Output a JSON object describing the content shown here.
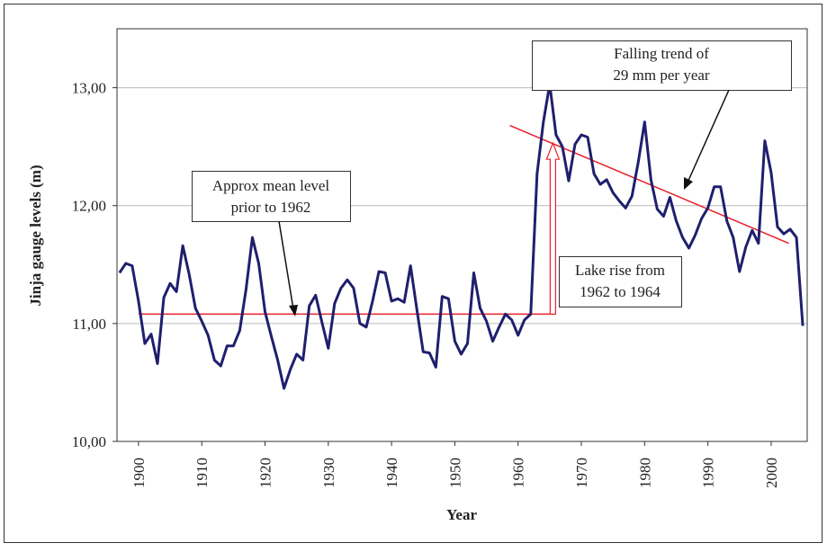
{
  "chart_data": {
    "type": "line",
    "y_label": "Jinja gauge levels (m)",
    "x_label": "Year",
    "color": "#1f1f6e",
    "x": [
      1897,
      1898,
      1899,
      1900,
      1901,
      1902,
      1903,
      1904,
      1905,
      1906,
      1907,
      1908,
      1909,
      1910,
      1911,
      1912,
      1913,
      1914,
      1915,
      1916,
      1917,
      1918,
      1919,
      1920,
      1921,
      1922,
      1923,
      1924,
      1925,
      1926,
      1927,
      1928,
      1929,
      1930,
      1931,
      1932,
      1933,
      1934,
      1935,
      1936,
      1937,
      1938,
      1939,
      1940,
      1941,
      1942,
      1943,
      1944,
      1945,
      1946,
      1947,
      1948,
      1949,
      1950,
      1951,
      1952,
      1953,
      1954,
      1955,
      1956,
      1957,
      1958,
      1959,
      1960,
      1961,
      1962,
      1963,
      1964,
      1965,
      1966,
      1967,
      1968,
      1969,
      1970,
      1971,
      1972,
      1973,
      1974,
      1975,
      1976,
      1977,
      1978,
      1979,
      1980,
      1981,
      1982,
      1983,
      1984,
      1985,
      1986,
      1987,
      1988,
      1989,
      1990,
      1991,
      1992,
      1993,
      1994,
      1995,
      1996,
      1997,
      1998,
      1999,
      2000,
      2001,
      2002,
      2003,
      2004,
      2005
    ],
    "values": [
      11.43,
      11.51,
      11.49,
      11.19,
      10.83,
      10.91,
      10.66,
      11.22,
      11.34,
      11.27,
      11.66,
      11.42,
      11.13,
      11.02,
      10.9,
      10.69,
      10.64,
      10.81,
      10.81,
      10.94,
      11.29,
      11.73,
      11.51,
      11.1,
      10.89,
      10.69,
      10.45,
      10.61,
      10.74,
      10.69,
      11.15,
      11.24,
      11.01,
      10.79,
      11.17,
      11.3,
      11.37,
      11.3,
      11.0,
      10.97,
      11.19,
      11.44,
      11.43,
      11.19,
      11.21,
      11.18,
      11.49,
      11.12,
      10.76,
      10.75,
      10.63,
      11.23,
      11.21,
      10.85,
      10.74,
      10.83,
      11.43,
      11.13,
      11.02,
      10.85,
      10.97,
      11.08,
      11.03,
      10.9,
      11.03,
      11.08,
      12.27,
      12.71,
      13.03,
      12.6,
      12.5,
      12.21,
      12.52,
      12.6,
      12.58,
      12.27,
      12.18,
      12.22,
      12.11,
      12.04,
      11.98,
      12.08,
      12.37,
      12.71,
      12.22,
      11.97,
      11.91,
      12.07,
      11.87,
      11.73,
      11.64,
      11.75,
      11.89,
      11.98,
      12.16,
      12.16,
      11.87,
      11.73,
      11.44,
      11.65,
      11.79,
      11.68,
      12.55,
      12.28,
      11.82,
      11.76,
      11.8,
      11.73,
      10.98
    ],
    "xlim": [
      1896.6,
      2005.7
    ],
    "ylim": [
      10,
      13.5
    ],
    "xticks": [
      1900,
      1910,
      1920,
      1930,
      1940,
      1950,
      1960,
      1970,
      1980,
      1990,
      2000
    ],
    "yticks": [
      {
        "value": 10,
        "label": "10,00"
      },
      {
        "value": 11,
        "label": "11,00"
      },
      {
        "value": 12,
        "label": "12,00"
      },
      {
        "value": 13,
        "label": "13,00"
      }
    ],
    "grid": true,
    "reference_lines": [
      {
        "color": "#e8202a",
        "x": [
          1900,
          1965.5
        ],
        "y": [
          11.08,
          11.08
        ]
      },
      {
        "color": "#e8202a",
        "x": [
          1958.7,
          2002.8
        ],
        "y": [
          12.68,
          11.68
        ]
      }
    ],
    "rise_arrow": {
      "color": "#e8202a",
      "x": 1965.5,
      "y": [
        11.08,
        12.53
      ]
    },
    "annotations": [
      {
        "lines": [
          "Approx mean level",
          "prior to 1962"
        ]
      },
      {
        "lines": [
          "Falling trend of",
          "29 mm per year"
        ]
      },
      {
        "lines": [
          "Lake rise from",
          "1962 to 1964"
        ]
      }
    ]
  }
}
